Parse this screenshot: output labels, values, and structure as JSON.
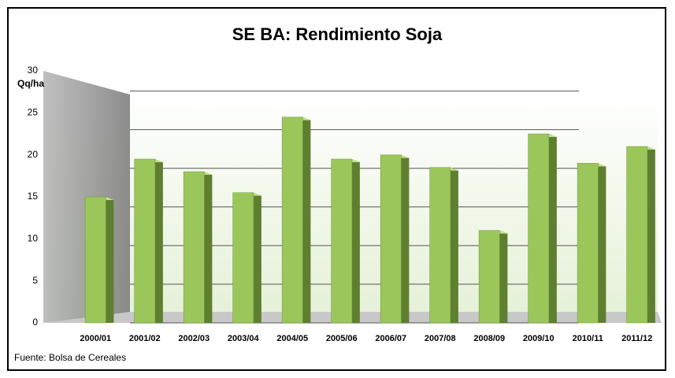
{
  "chart_data": {
    "type": "bar",
    "title": "SE BA: Rendimiento Soja",
    "y_label": "Qq/ha",
    "source": "Fuente: Bolsa de Cereales",
    "categories": [
      "2000/01",
      "2001/02",
      "2002/03",
      "2003/04",
      "2004/05",
      "2005/06",
      "2006/07",
      "2007/08",
      "2008/09",
      "2009/10",
      "2010/11",
      "2011/12"
    ],
    "values": [
      15,
      19.5,
      18,
      15.5,
      24.5,
      19.5,
      20,
      18.5,
      11,
      22.5,
      19,
      21
    ],
    "color": "#9bc65a",
    "ylim": [
      0,
      30
    ],
    "yticks": [
      0,
      5,
      10,
      15,
      20,
      25,
      30
    ],
    "grid": true
  }
}
